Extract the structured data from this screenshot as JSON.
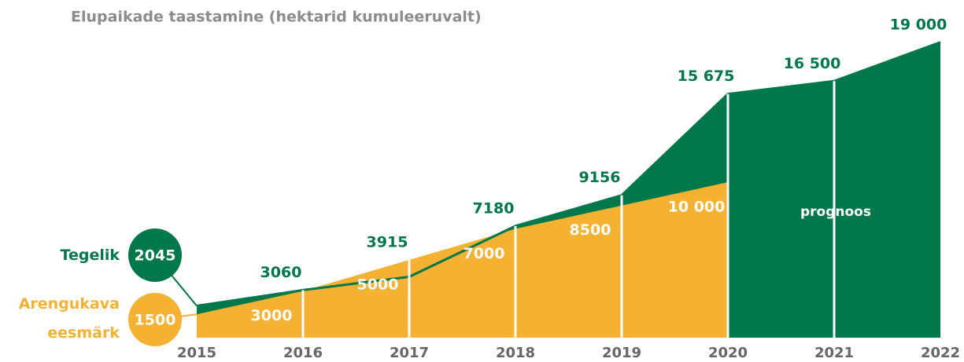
{
  "chart_data": {
    "type": "area",
    "title": "Elupaikade taastamine (hektarid kumuleeruvalt)",
    "categories": [
      "2015",
      "2016",
      "2017",
      "2018",
      "2019",
      "2020",
      "2021",
      "2022"
    ],
    "series": [
      {
        "name": "Tegelik",
        "color": "#00784a",
        "values": [
          2045,
          3060,
          3915,
          7180,
          9156,
          15675,
          16500,
          19000
        ],
        "value_labels": [
          "2045",
          "3060",
          "3915",
          "7180",
          "9156",
          "15 675",
          "16 500",
          "19 000"
        ]
      },
      {
        "name": "Arengukava eesmärk",
        "color": "#f5b131",
        "values": [
          1500,
          3000,
          5000,
          7000,
          8500,
          10000,
          null,
          null
        ],
        "value_labels": [
          "1500",
          "3000",
          "5000",
          "7000",
          "8500",
          "10 000",
          null,
          null
        ]
      }
    ],
    "ylim": [
      0,
      20000
    ],
    "annotation": "prognoos"
  }
}
